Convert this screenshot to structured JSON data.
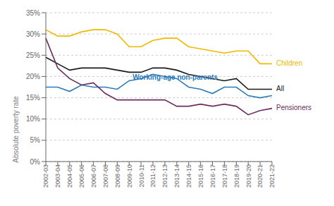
{
  "chart_data": {
    "type": "line",
    "categories": [
      "2002-03",
      "2003-04",
      "2004-05",
      "2005-06",
      "2006-07",
      "2007-08",
      "2008-09",
      "2009-10",
      "2010-11",
      "2011-12",
      "2012-13",
      "2013-14",
      "2014-15",
      "2015-16",
      "2016-17",
      "2017-18",
      "2018-19",
      "2019-20",
      "2020-21",
      "2021-22"
    ],
    "series": [
      {
        "name": "Children",
        "color": "#f0b800",
        "values": [
          31.0,
          29.5,
          29.5,
          30.5,
          31.0,
          31.0,
          30.0,
          27.0,
          27.0,
          28.5,
          29.0,
          29.0,
          27.0,
          26.5,
          26.0,
          25.5,
          26.0,
          26.0,
          23.0,
          23.0
        ]
      },
      {
        "name": "All",
        "color": "#1a1a1a",
        "values": [
          24.5,
          23.0,
          21.5,
          22.0,
          22.0,
          22.0,
          21.5,
          21.0,
          21.0,
          22.0,
          22.0,
          21.5,
          20.5,
          20.0,
          19.5,
          19.0,
          19.5,
          17.0,
          17.0,
          17.0
        ]
      },
      {
        "name": "Working-age non-parents",
        "color": "#2b7bba",
        "values": [
          17.5,
          17.5,
          16.5,
          18.0,
          17.5,
          17.5,
          17.0,
          19.0,
          19.5,
          20.5,
          20.0,
          19.5,
          17.5,
          17.0,
          16.0,
          17.5,
          17.5,
          15.5,
          15.0,
          15.5
        ]
      },
      {
        "name": "Pensioners",
        "color": "#6b2d5e",
        "values": [
          29.0,
          22.0,
          19.5,
          18.0,
          18.5,
          16.0,
          14.5,
          14.5,
          14.5,
          14.5,
          14.5,
          13.0,
          13.0,
          13.5,
          13.0,
          13.5,
          13.0,
          11.0,
          12.0,
          12.5
        ]
      }
    ],
    "ylabel": "Absolute poverty rate",
    "ylim": [
      0,
      35
    ],
    "yticks": [
      {
        "value": 0,
        "label": "0%"
      },
      {
        "value": 5,
        "label": "5%"
      },
      {
        "value": 10,
        "label": "10%"
      },
      {
        "value": 15,
        "label": "15%"
      },
      {
        "value": 20,
        "label": "20%"
      },
      {
        "value": 25,
        "label": "25%"
      },
      {
        "value": 30,
        "label": "30%"
      },
      {
        "value": 35,
        "label": "35%"
      }
    ],
    "grid": true,
    "annotations": [
      {
        "text": "Working-age non-parents",
        "x": "2009-10",
        "y": 19.8
      }
    ]
  }
}
